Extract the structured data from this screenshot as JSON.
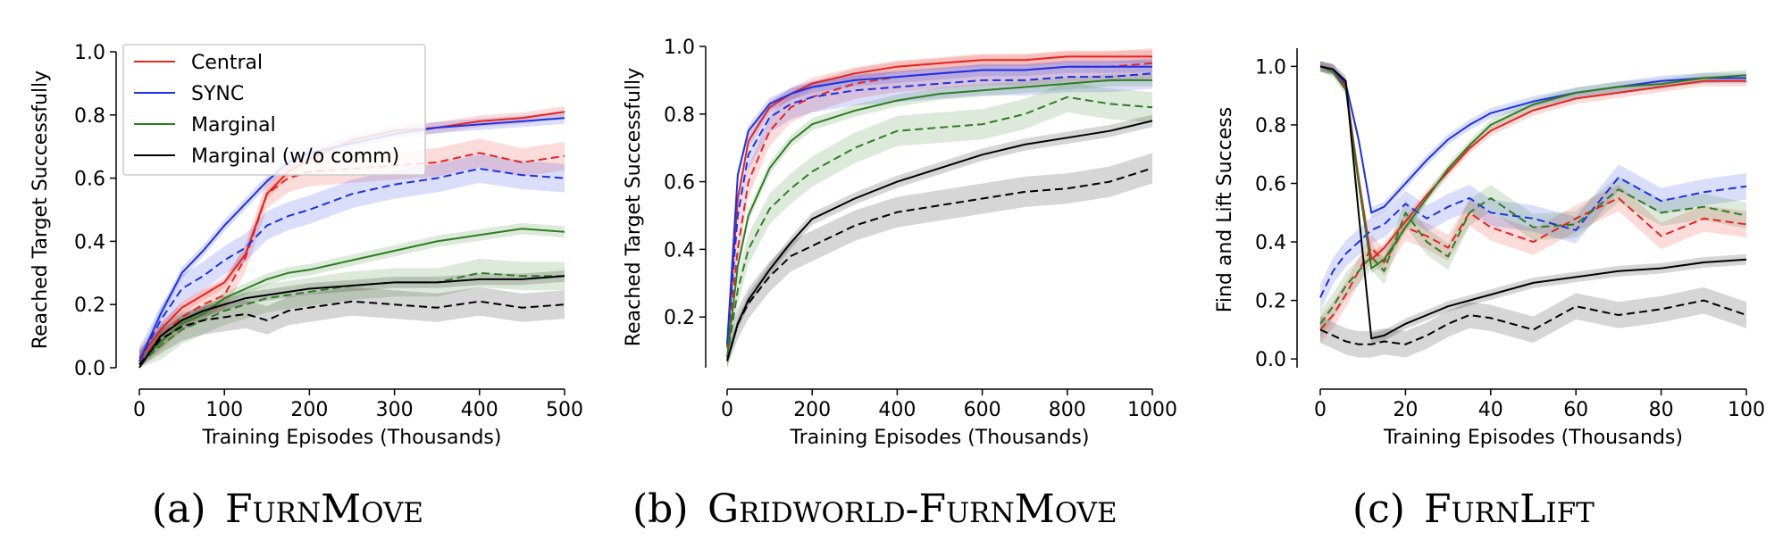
{
  "colors": {
    "central": "#e8231f",
    "sync": "#1c31e6",
    "marginal": "#2e7d22",
    "marginal_wo": "#000000"
  },
  "legend": {
    "items": [
      {
        "label": "Central",
        "color": "#e8231f"
      },
      {
        "label": "SYNC",
        "color": "#1c31e6"
      },
      {
        "label": "Marginal",
        "color": "#2e7d22"
      },
      {
        "label": "Marginal (w/o comm)",
        "color": "#000000"
      }
    ]
  },
  "chart_data": [
    {
      "id": "a",
      "type": "line",
      "caption": {
        "label": "(a)",
        "name": "FurnMove"
      },
      "xlabel": "Training Episodes (Thousands)",
      "ylabel": "Reached Target Successfully",
      "xlim": [
        0,
        500
      ],
      "ylim": [
        0,
        1.0
      ],
      "xticks": [
        0,
        100,
        200,
        300,
        400,
        500
      ],
      "yticks": [
        0.0,
        0.2,
        0.4,
        0.6,
        0.8,
        1.0
      ],
      "ytick_labels": [
        "0.0",
        "0.2",
        "0.4",
        "0.6",
        "0.8",
        "1.0"
      ],
      "x": [
        0,
        25,
        50,
        75,
        100,
        125,
        150,
        175,
        200,
        250,
        300,
        350,
        400,
        450,
        500
      ],
      "series": [
        {
          "name": "Central",
          "style": "solid",
          "values": [
            0.03,
            0.12,
            0.19,
            0.23,
            0.27,
            0.36,
            0.55,
            0.62,
            0.66,
            0.72,
            0.75,
            0.76,
            0.78,
            0.79,
            0.81
          ]
        },
        {
          "name": "Central",
          "style": "dashed",
          "values": [
            0.02,
            0.1,
            0.16,
            0.2,
            0.23,
            0.35,
            0.55,
            0.6,
            0.62,
            0.63,
            0.64,
            0.65,
            0.68,
            0.65,
            0.67
          ]
        },
        {
          "name": "SYNC",
          "style": "solid",
          "values": [
            0.02,
            0.17,
            0.3,
            0.37,
            0.45,
            0.52,
            0.59,
            0.65,
            0.68,
            0.71,
            0.74,
            0.76,
            0.77,
            0.78,
            0.79
          ]
        },
        {
          "name": "SYNC",
          "style": "dashed",
          "values": [
            0.02,
            0.15,
            0.25,
            0.29,
            0.34,
            0.38,
            0.45,
            0.48,
            0.5,
            0.55,
            0.58,
            0.6,
            0.63,
            0.61,
            0.6
          ]
        },
        {
          "name": "Marginal",
          "style": "solid",
          "values": [
            0.01,
            0.08,
            0.14,
            0.17,
            0.22,
            0.25,
            0.28,
            0.3,
            0.31,
            0.34,
            0.37,
            0.4,
            0.42,
            0.44,
            0.43
          ]
        },
        {
          "name": "Marginal",
          "style": "dashed",
          "values": [
            0.01,
            0.07,
            0.12,
            0.15,
            0.18,
            0.2,
            0.22,
            0.23,
            0.24,
            0.26,
            0.27,
            0.27,
            0.3,
            0.29,
            0.29
          ]
        },
        {
          "name": "Marginal (w/o comm)",
          "style": "solid",
          "values": [
            0.0,
            0.1,
            0.15,
            0.18,
            0.2,
            0.22,
            0.23,
            0.24,
            0.25,
            0.26,
            0.27,
            0.27,
            0.28,
            0.28,
            0.29
          ]
        },
        {
          "name": "Marginal (w/o comm)",
          "style": "dashed",
          "values": [
            0.01,
            0.09,
            0.13,
            0.15,
            0.16,
            0.17,
            0.15,
            0.18,
            0.19,
            0.21,
            0.2,
            0.19,
            0.21,
            0.19,
            0.2
          ]
        }
      ]
    },
    {
      "id": "b",
      "type": "line",
      "caption": {
        "label": "(b)",
        "name": "Gridworld-FurnMove"
      },
      "xlabel": "Training Episodes (Thousands)",
      "ylabel": "Reached Target Successfully",
      "xlim": [
        0,
        1000
      ],
      "ylim": [
        0.05,
        1.0
      ],
      "xticks": [
        0,
        200,
        400,
        600,
        800,
        1000
      ],
      "yticks": [
        0.2,
        0.4,
        0.6,
        0.8,
        1.0
      ],
      "ytick_labels": [
        "0.2",
        "0.4",
        "0.6",
        "0.8",
        "1.0"
      ],
      "x": [
        0,
        25,
        50,
        100,
        150,
        200,
        300,
        400,
        500,
        600,
        700,
        800,
        900,
        1000
      ],
      "series": [
        {
          "name": "Central",
          "style": "solid",
          "values": [
            0.11,
            0.55,
            0.72,
            0.82,
            0.86,
            0.89,
            0.92,
            0.94,
            0.95,
            0.96,
            0.96,
            0.97,
            0.97,
            0.97
          ]
        },
        {
          "name": "Central",
          "style": "dashed",
          "values": [
            0.11,
            0.4,
            0.6,
            0.75,
            0.82,
            0.85,
            0.89,
            0.91,
            0.92,
            0.93,
            0.93,
            0.94,
            0.94,
            0.95
          ]
        },
        {
          "name": "SYNC",
          "style": "solid",
          "values": [
            0.12,
            0.62,
            0.75,
            0.83,
            0.86,
            0.88,
            0.9,
            0.91,
            0.92,
            0.93,
            0.93,
            0.94,
            0.94,
            0.94
          ]
        },
        {
          "name": "SYNC",
          "style": "dashed",
          "values": [
            0.12,
            0.5,
            0.68,
            0.79,
            0.83,
            0.85,
            0.87,
            0.88,
            0.89,
            0.9,
            0.9,
            0.91,
            0.91,
            0.92
          ]
        },
        {
          "name": "Marginal",
          "style": "solid",
          "values": [
            0.08,
            0.35,
            0.5,
            0.64,
            0.72,
            0.77,
            0.81,
            0.84,
            0.86,
            0.87,
            0.88,
            0.89,
            0.9,
            0.9
          ]
        },
        {
          "name": "Marginal",
          "style": "dashed",
          "values": [
            0.08,
            0.28,
            0.4,
            0.52,
            0.58,
            0.63,
            0.7,
            0.75,
            0.76,
            0.77,
            0.8,
            0.85,
            0.83,
            0.82
          ]
        },
        {
          "name": "Marginal (w/o comm)",
          "style": "solid",
          "values": [
            0.07,
            0.18,
            0.25,
            0.34,
            0.42,
            0.49,
            0.55,
            0.6,
            0.64,
            0.68,
            0.71,
            0.73,
            0.75,
            0.78
          ]
        },
        {
          "name": "Marginal (w/o comm)",
          "style": "dashed",
          "values": [
            0.07,
            0.18,
            0.24,
            0.32,
            0.38,
            0.41,
            0.47,
            0.51,
            0.53,
            0.55,
            0.57,
            0.58,
            0.6,
            0.64
          ]
        }
      ]
    },
    {
      "id": "c",
      "type": "line",
      "caption": {
        "label": "(c)",
        "name": "FurnLift"
      },
      "xlabel": "Training Episodes (Thousands)",
      "ylabel": "Find and Lift Success",
      "xlim": [
        0,
        100
      ],
      "ylim": [
        -0.03,
        1.05
      ],
      "xticks": [
        0,
        20,
        40,
        60,
        80,
        100
      ],
      "yticks": [
        0.0,
        0.2,
        0.4,
        0.6,
        0.8,
        1.0
      ],
      "ytick_labels": [
        "0.0",
        "0.2",
        "0.4",
        "0.6",
        "0.8",
        "1.0"
      ],
      "x": [
        0,
        3,
        6,
        9,
        12,
        15,
        20,
        25,
        30,
        35,
        40,
        50,
        60,
        70,
        80,
        90,
        100
      ],
      "series": [
        {
          "name": "Central",
          "style": "solid",
          "values": [
            1.0,
            0.99,
            0.93,
            0.62,
            0.34,
            0.38,
            0.47,
            0.56,
            0.64,
            0.72,
            0.78,
            0.85,
            0.89,
            0.91,
            0.93,
            0.95,
            0.95
          ]
        },
        {
          "name": "Central",
          "style": "dashed",
          "values": [
            0.1,
            0.15,
            0.22,
            0.3,
            0.38,
            0.33,
            0.45,
            0.42,
            0.38,
            0.5,
            0.45,
            0.4,
            0.48,
            0.55,
            0.42,
            0.48,
            0.46
          ]
        },
        {
          "name": "SYNC",
          "style": "solid",
          "values": [
            1.0,
            0.99,
            0.94,
            0.75,
            0.5,
            0.52,
            0.6,
            0.68,
            0.75,
            0.8,
            0.84,
            0.88,
            0.91,
            0.93,
            0.95,
            0.96,
            0.96
          ]
        },
        {
          "name": "SYNC",
          "style": "dashed",
          "values": [
            0.21,
            0.3,
            0.36,
            0.4,
            0.44,
            0.46,
            0.53,
            0.48,
            0.52,
            0.55,
            0.5,
            0.48,
            0.44,
            0.62,
            0.54,
            0.57,
            0.59
          ]
        },
        {
          "name": "Marginal",
          "style": "solid",
          "values": [
            1.0,
            0.98,
            0.92,
            0.6,
            0.31,
            0.34,
            0.45,
            0.55,
            0.65,
            0.73,
            0.8,
            0.87,
            0.91,
            0.93,
            0.94,
            0.96,
            0.97
          ]
        },
        {
          "name": "Marginal",
          "style": "dashed",
          "values": [
            0.12,
            0.18,
            0.25,
            0.3,
            0.35,
            0.3,
            0.5,
            0.4,
            0.35,
            0.5,
            0.55,
            0.45,
            0.46,
            0.58,
            0.5,
            0.52,
            0.49
          ]
        },
        {
          "name": "Marginal (w/o comm)",
          "style": "solid",
          "values": [
            1.0,
            0.99,
            0.95,
            0.5,
            0.07,
            0.08,
            0.12,
            0.15,
            0.18,
            0.2,
            0.22,
            0.26,
            0.28,
            0.3,
            0.31,
            0.33,
            0.34
          ]
        },
        {
          "name": "Marginal (w/o comm)",
          "style": "dashed",
          "values": [
            0.1,
            0.08,
            0.06,
            0.05,
            0.05,
            0.06,
            0.05,
            0.08,
            0.12,
            0.15,
            0.14,
            0.1,
            0.18,
            0.15,
            0.17,
            0.2,
            0.15
          ]
        }
      ]
    }
  ]
}
